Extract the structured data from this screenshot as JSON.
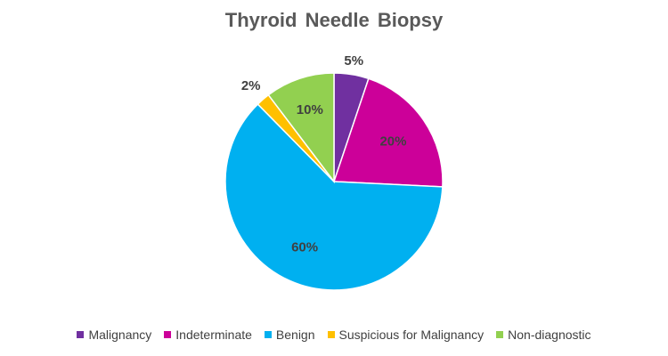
{
  "chart_data": {
    "type": "pie",
    "title": "Thyroid  Needle Biopsy",
    "categories": [
      "Malignancy",
      "Indeterminate",
      "Benign",
      "Suspicious for Malignancy",
      "Non-diagnostic"
    ],
    "values": [
      5,
      20,
      60,
      2,
      10
    ],
    "labels": [
      "5%",
      "20%",
      "60%",
      "2%",
      "10%"
    ],
    "colors": [
      "#7030A0",
      "#CC0099",
      "#00B0F0",
      "#FFC000",
      "#92D050"
    ],
    "legend_position": "bottom",
    "start_angle": "12 o'clock, clockwise"
  }
}
